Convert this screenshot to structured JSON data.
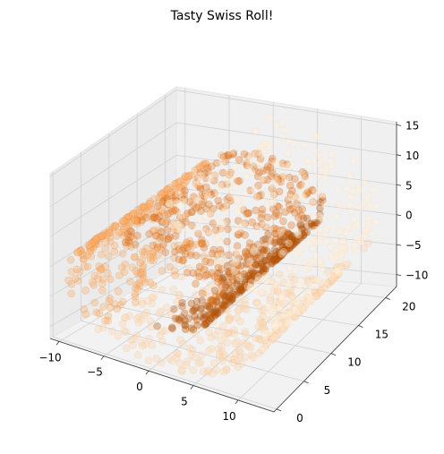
{
  "chart_data": {
    "type": "scatter",
    "projection": "3d",
    "title": "Tasty Swiss Roll!",
    "xlabel": "",
    "ylabel": "",
    "zlabel": "",
    "xlim": [
      -11,
      14
    ],
    "ylim": [
      -0.5,
      22
    ],
    "zlim": [
      -12,
      15.5
    ],
    "x_ticks": [
      -10,
      -5,
      0,
      5,
      10
    ],
    "y_ticks": [
      0,
      5,
      10,
      15,
      20
    ],
    "z_ticks": [
      -10,
      -5,
      0,
      5,
      10,
      15
    ],
    "grid": true,
    "colormap": "Oranges",
    "colormap_colors": [
      "#fff1de",
      "#fdd8b0",
      "#fdae6b",
      "#e8791f",
      "#b5520a"
    ],
    "pane_color": "#f2f2f2",
    "n_points": 1500,
    "t_range": [
      4.71,
      14.14
    ],
    "height_range": [
      0,
      21
    ],
    "point_alpha": 0.35
  }
}
